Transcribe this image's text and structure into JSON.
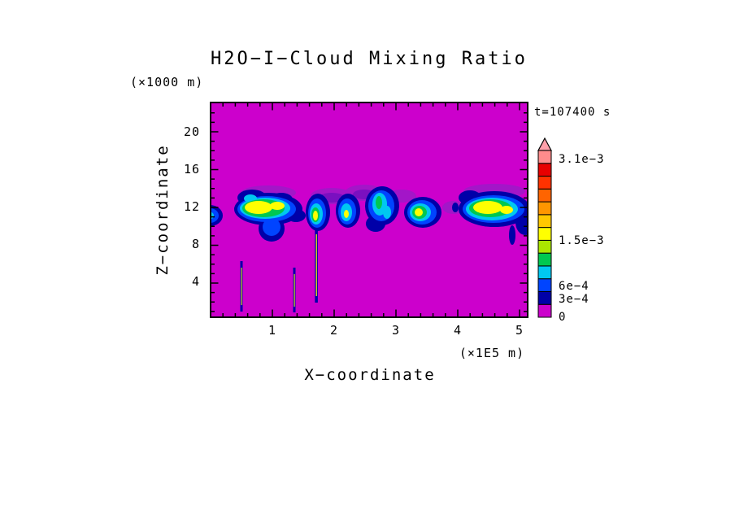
{
  "title": "H2O−I−Cloud Mixing Ratio",
  "time_label": "t=107400 s",
  "axes": {
    "x": {
      "label": "X−coordinate",
      "unit": "(×1E5 m)",
      "ticks": [
        "1",
        "2",
        "3",
        "4",
        "5"
      ]
    },
    "z": {
      "label": "Z−coordinate",
      "unit": "(×1000 m)",
      "ticks": [
        "20",
        "16",
        "12",
        "8",
        "4"
      ]
    }
  },
  "colorbar": {
    "labels": [
      {
        "text": "3.1e−3"
      },
      {
        "text": "1.5e−3"
      },
      {
        "text": "6e−4"
      },
      {
        "text": "3e−4"
      },
      {
        "text": "0"
      }
    ]
  },
  "chart_data": {
    "type": "heatmap",
    "title": "H2O-I-Cloud Mixing Ratio",
    "time_seconds": 107400,
    "x_axis": {
      "label": "X-coordinate",
      "units": "1E5 m",
      "range": [
        0,
        5.15
      ],
      "ticks": [
        1,
        2,
        3,
        4,
        5
      ]
    },
    "z_axis": {
      "label": "Z-coordinate",
      "units": "1000 m",
      "range": [
        0,
        23.2
      ],
      "ticks": [
        4,
        8,
        12,
        16,
        20
      ]
    },
    "value_quantity": "cloud ice mixing ratio",
    "background_value": 0,
    "labeled_contour_levels": [
      0,
      0.0003,
      0.0006,
      0.0015,
      0.0031
    ],
    "colorbar_has_top_arrow": true,
    "background_color": "#CC00CC",
    "palette_bottom_to_top": [
      "#CC00CC",
      "#0000A8",
      "#0044FF",
      "#00C8F0",
      "#00C850",
      "#AAE600",
      "#FFFF00",
      "#FFC800",
      "#FF9600",
      "#FF6400",
      "#FF3200",
      "#E80000",
      "#FF8C8C"
    ],
    "arrow_color": "#FFA0AA",
    "features": {
      "anvil_cloud_band": {
        "z_center_km": 12,
        "z_extent_km": [
          9,
          14.5
        ],
        "cells": [
          {
            "x_center_1e5m": 0.08,
            "x_extent_1e5m": [
              0.0,
              0.25
            ],
            "peak_level": "~6e-4",
            "note": "clipped at left edge"
          },
          {
            "x_center_1e5m": 0.95,
            "x_extent_1e5m": [
              0.4,
              1.5
            ],
            "peak_level": ">1.5e-3",
            "note": "largest cell, yellow core"
          },
          {
            "x_center_1e5m": 1.73,
            "x_extent_1e5m": [
              1.55,
              1.95
            ],
            "peak_level": "~1.5e-3"
          },
          {
            "x_center_1e5m": 2.2,
            "x_extent_1e5m": [
              2.0,
              2.45
            ],
            "peak_level": "~1e-3"
          },
          {
            "x_center_1e5m": 2.75,
            "x_extent_1e5m": [
              2.5,
              3.05
            ],
            "peak_level": "~8e-4",
            "note": "mostly blue/cyan"
          },
          {
            "x_center_1e5m": 3.45,
            "x_extent_1e5m": [
              3.15,
              3.75
            ],
            "peak_level": "~1.5e-3"
          },
          {
            "x_center_1e5m": 4.6,
            "x_extent_1e5m": [
              4.05,
              5.15
            ],
            "peak_level": ">1.5e-3",
            "note": "extends past right edge, yellow core"
          }
        ]
      },
      "precipitation_streaks": [
        {
          "x_1e5m": 0.5,
          "z_extent_km": [
            1.0,
            5.5
          ]
        },
        {
          "x_1e5m": 1.35,
          "z_extent_km": [
            0.8,
            5.0
          ]
        },
        {
          "x_1e5m": 1.72,
          "z_extent_km": [
            1.5,
            9.5
          ],
          "note": "tallest streak, connects to cloud base"
        }
      ]
    }
  }
}
